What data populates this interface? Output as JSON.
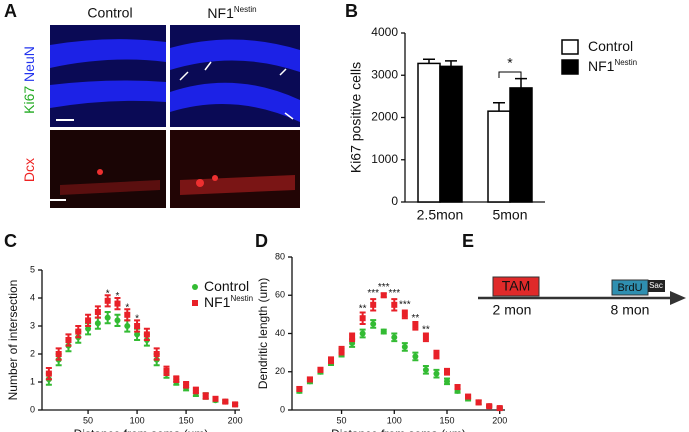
{
  "panel_labels": [
    "A",
    "B",
    "C",
    "D",
    "E"
  ],
  "panel_a": {
    "columns": [
      "Control",
      {
        "base": "NF1",
        "superscript": "Nestin"
      }
    ],
    "rows": [
      {
        "parts": [
          {
            "text": "Ki67",
            "color": "#22aa22"
          },
          {
            "text": " NeuN",
            "color": "#2233ee"
          }
        ]
      },
      {
        "parts": [
          {
            "text": "Dcx",
            "color": "#ee2222"
          }
        ]
      }
    ]
  },
  "chart_data": [
    {
      "type": "bar",
      "ylabel": "Ki67 positive cells",
      "categories": [
        "2.5mon",
        "5mon"
      ],
      "series": [
        {
          "name": "Control",
          "color": "#ffffff",
          "values": [
            3280,
            2150
          ],
          "errors": [
            100,
            200
          ]
        },
        {
          "name": "NF1",
          "superscript": "Nestin",
          "color": "#000000",
          "values": [
            3210,
            2700
          ],
          "errors": [
            130,
            220
          ]
        }
      ],
      "ylim": [
        0,
        4000
      ],
      "yticks": [
        0,
        1000,
        2000,
        3000,
        4000
      ],
      "legend": "right",
      "annotations": [
        "*"
      ]
    },
    {
      "type": "scatter",
      "ylabel": "Number of intersection",
      "xlabel": "Distance from soma (um)",
      "x": [
        10,
        20,
        30,
        40,
        50,
        60,
        70,
        80,
        90,
        100,
        110,
        120,
        130,
        140,
        150,
        160,
        170,
        180,
        190,
        200
      ],
      "series": [
        {
          "name": "Control",
          "color": "#33bb33",
          "marker": "circle",
          "values": [
            1.1,
            1.8,
            2.3,
            2.6,
            2.9,
            3.1,
            3.3,
            3.2,
            3.0,
            2.7,
            2.5,
            1.8,
            1.3,
            1.0,
            0.8,
            0.6,
            0.5,
            0.35,
            0.3,
            0.2
          ],
          "errors": [
            0.2,
            0.2,
            0.2,
            0.2,
            0.2,
            0.2,
            0.2,
            0.2,
            0.2,
            0.2,
            0.2,
            0.2,
            0.15,
            0.1,
            0.1,
            0.1,
            0.1,
            0.05,
            0.05,
            0.05
          ]
        },
        {
          "name": "NF1",
          "superscript": "Nestin",
          "color": "#e82028",
          "marker": "square",
          "values": [
            1.3,
            2.0,
            2.5,
            2.8,
            3.2,
            3.5,
            3.9,
            3.8,
            3.4,
            3.0,
            2.7,
            2.0,
            1.4,
            1.1,
            0.9,
            0.7,
            0.5,
            0.4,
            0.3,
            0.2
          ],
          "errors": [
            0.2,
            0.2,
            0.2,
            0.2,
            0.2,
            0.2,
            0.2,
            0.2,
            0.2,
            0.2,
            0.2,
            0.2,
            0.15,
            0.1,
            0.1,
            0.1,
            0.1,
            0.05,
            0.05,
            0.05
          ]
        }
      ],
      "xlim": [
        3,
        205
      ],
      "xticks": [
        50,
        100,
        150,
        200
      ],
      "ylim": [
        0,
        5
      ],
      "yticks": [
        0,
        1,
        2,
        3,
        4,
        5
      ],
      "legend": "upper right",
      "annotations": [
        {
          "x": 70,
          "y": 4.15,
          "text": "*"
        },
        {
          "x": 80,
          "y": 4.05,
          "text": "*"
        },
        {
          "x": 90,
          "y": 3.65,
          "text": "*"
        },
        {
          "x": 100,
          "y": 3.25,
          "text": "*"
        }
      ]
    },
    {
      "type": "scatter",
      "ylabel": "Dendritic length (um)",
      "xlabel": "Distance from soma (um)",
      "x": [
        10,
        20,
        30,
        40,
        50,
        60,
        70,
        80,
        90,
        100,
        110,
        120,
        130,
        140,
        150,
        160,
        170,
        180,
        190,
        200
      ],
      "series": [
        {
          "name": "Control",
          "color": "#33bb33",
          "marker": "circle",
          "values": [
            10,
            15,
            20,
            25,
            30,
            35,
            40,
            45,
            41,
            38,
            33,
            28,
            21,
            19,
            15,
            10,
            6,
            4,
            2,
            1
          ],
          "errors": [
            1,
            1,
            1,
            1.5,
            2,
            2,
            2,
            2,
            1,
            2,
            2,
            2,
            2,
            2,
            1.5,
            1,
            1,
            1,
            0.5,
            0.5
          ]
        },
        {
          "name": "NF1",
          "superscript": "Nestin",
          "color": "#e82028",
          "marker": "square",
          "values": [
            11,
            16,
            21,
            26,
            31,
            38,
            48,
            55,
            60,
            55,
            50,
            44,
            38,
            29,
            20,
            12,
            7,
            4,
            2,
            1
          ],
          "errors": [
            1,
            1,
            1,
            1.5,
            2,
            2,
            3,
            3,
            1,
            3,
            2,
            2,
            2,
            2,
            1.5,
            1,
            1,
            1,
            0.5,
            0.5
          ]
        }
      ],
      "xlim": [
        3,
        205
      ],
      "xticks": [
        50,
        100,
        150,
        200
      ],
      "ylim": [
        0,
        80
      ],
      "yticks": [
        0,
        20,
        40,
        60,
        80
      ],
      "annotations": [
        {
          "x": 70,
          "y": 53,
          "text": "**"
        },
        {
          "x": 80,
          "y": 61,
          "text": "***"
        },
        {
          "x": 90,
          "y": 64,
          "text": "***"
        },
        {
          "x": 100,
          "y": 61,
          "text": "***"
        },
        {
          "x": 110,
          "y": 55,
          "text": "***"
        },
        {
          "x": 120,
          "y": 48,
          "text": "**"
        },
        {
          "x": 130,
          "y": 42,
          "text": "**"
        }
      ]
    }
  ],
  "panel_e": {
    "steps": [
      {
        "label": "TAM",
        "time": "2 mon"
      },
      {
        "label": "BrdU",
        "time": "8 mon"
      }
    ],
    "end": "Sac"
  }
}
